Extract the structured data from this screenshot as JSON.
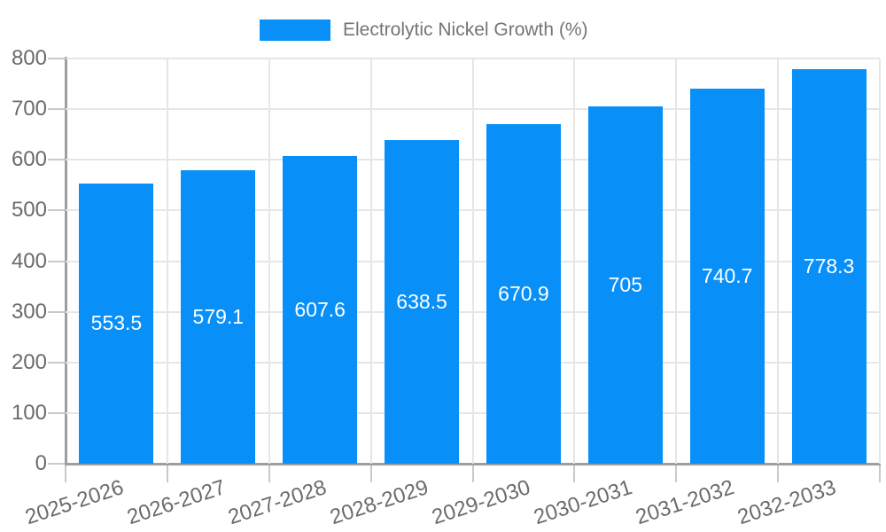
{
  "legend": {
    "label": "Electrolytic Nickel Growth (%)"
  },
  "chart_data": {
    "type": "bar",
    "title": "",
    "categories": [
      "2025-2026",
      "2026-2027",
      "2027-2028",
      "2028-2029",
      "2029-2030",
      "2030-2031",
      "2031-2032",
      "2032-2033"
    ],
    "series": [
      {
        "name": "Electrolytic Nickel Growth (%)",
        "values": [
          553.5,
          579.1,
          607.6,
          638.5,
          670.9,
          705,
          740.7,
          778.3
        ]
      }
    ],
    "value_labels": [
      "553.5",
      "579.1",
      "607.6",
      "638.5",
      "670.9",
      "705",
      "740.7",
      "778.3"
    ],
    "xlabel": "",
    "ylabel": "",
    "ylim": [
      0,
      800
    ],
    "y_ticks": [
      0,
      100,
      200,
      300,
      400,
      500,
      600,
      700,
      800
    ],
    "grid": true,
    "legend_position": "top-center",
    "x_label_rotation_deg": -18,
    "colors": {
      "bar": "#0890F8",
      "grid": "#e6e6e6",
      "axis": "#9e9e9e",
      "tick": "#c9c9c9",
      "tick_text": "#6b6b6b",
      "legend_text": "#757575",
      "value_text": "#ffffff",
      "background": "#ffffff"
    }
  }
}
